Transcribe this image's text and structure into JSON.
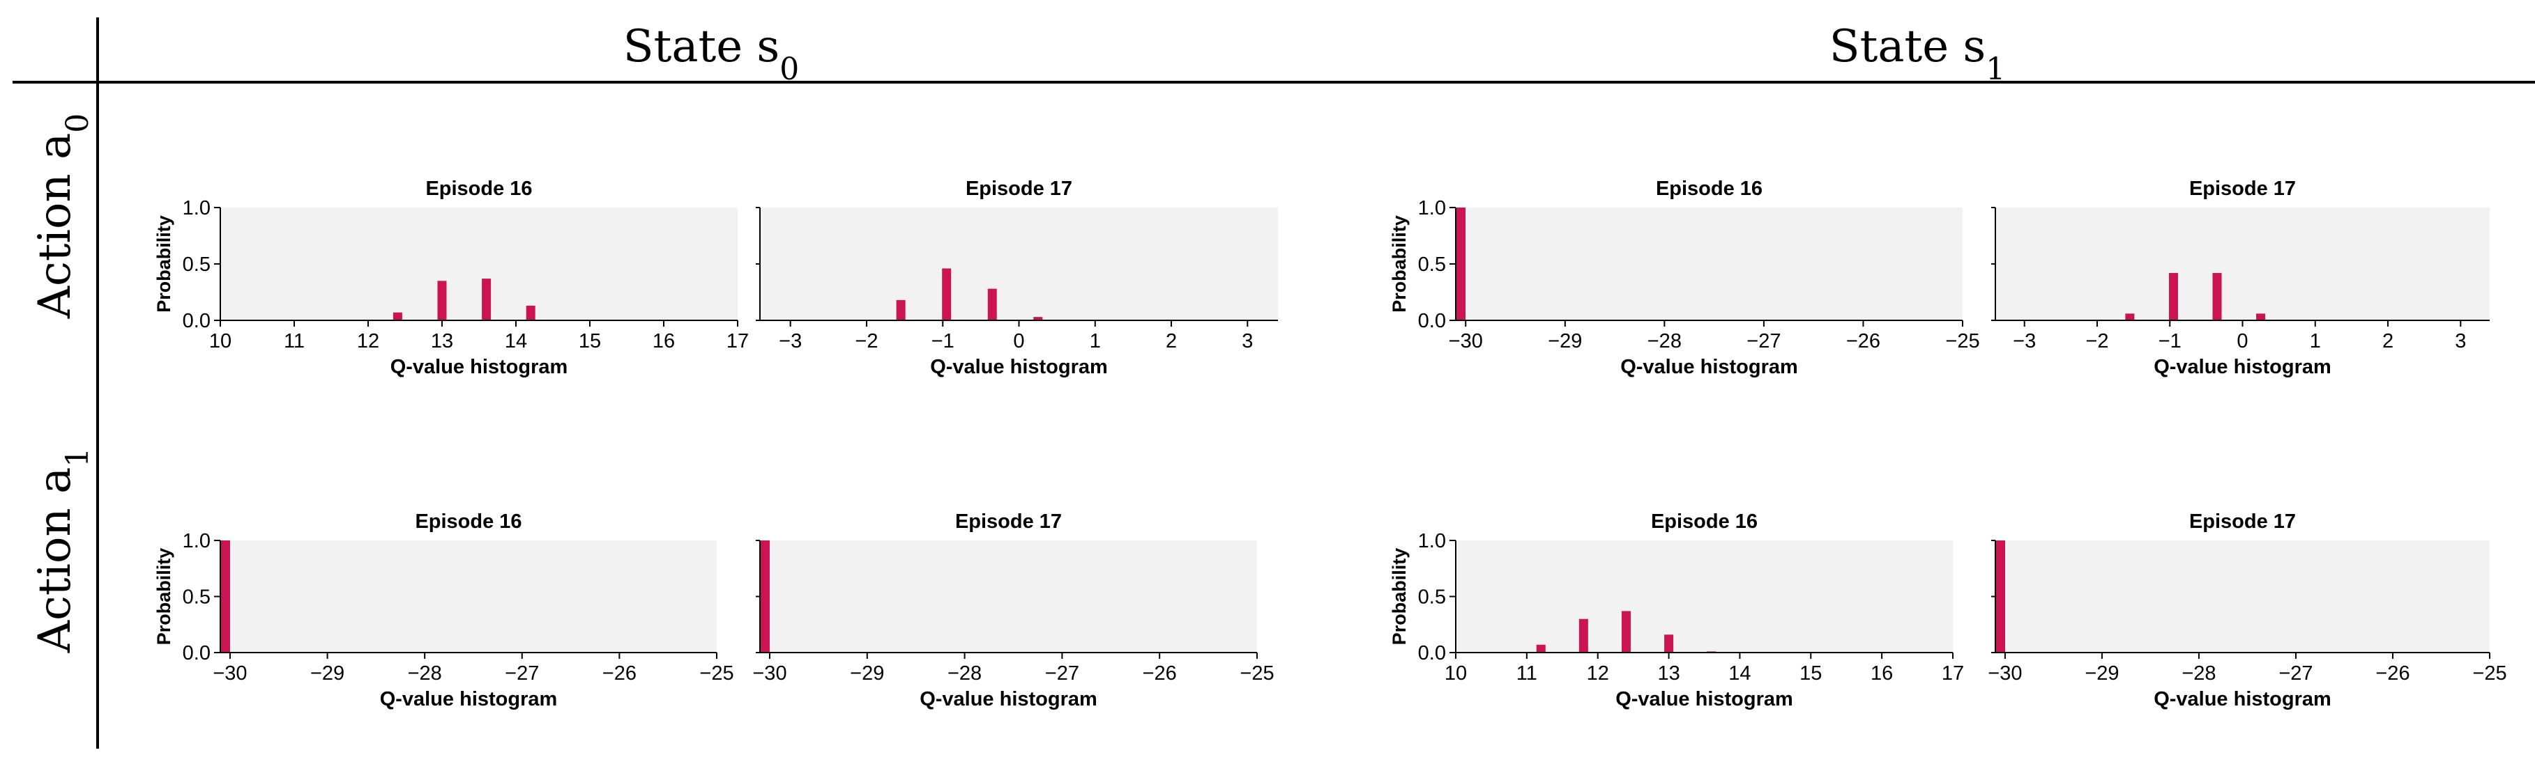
{
  "headers": {
    "state_s0": "State s",
    "state_s0_sub": "0",
    "state_s1": "State s",
    "state_s1_sub": "1",
    "action_a0": "Action a",
    "action_a0_sub": "0",
    "action_a1": "Action a",
    "action_a1_sub": "1"
  },
  "colors": {
    "bar": "#cc1452",
    "panel_bg": "#f2f2f2",
    "rule": "#000000"
  },
  "chart_data": [
    {
      "id": "a0-s0-ep16",
      "type": "bar",
      "title": "Episode 16",
      "xlabel": "Q-value histogram",
      "ylabel": "Probability",
      "xlim": [
        10,
        17
      ],
      "ylim": [
        0,
        1
      ],
      "xticks": [
        "10",
        "11",
        "12",
        "13",
        "14",
        "15",
        "16",
        "17"
      ],
      "yticks": [
        "0.0",
        "0.5",
        "1.0"
      ],
      "x": [
        12.4,
        13.0,
        13.6,
        14.2
      ],
      "values": [
        0.07,
        0.35,
        0.37,
        0.13
      ]
    },
    {
      "id": "a0-s0-ep17",
      "type": "bar",
      "title": "Episode 17",
      "xlabel": "Q-value histogram",
      "ylabel": "",
      "xlim": [
        -3.4,
        3.4
      ],
      "ylim": [
        0,
        1
      ],
      "xticks": [
        "−3",
        "−2",
        "−1",
        "0",
        "1",
        "2",
        "3"
      ],
      "yticks": [],
      "x": [
        -1.55,
        -0.95,
        -0.35,
        0.25
      ],
      "values": [
        0.18,
        0.46,
        0.28,
        0.03
      ]
    },
    {
      "id": "a0-s1-ep16",
      "type": "bar",
      "title": "Episode 16",
      "xlabel": "Q-value histogram",
      "ylabel": "Probability",
      "xlim": [
        -30.1,
        -25
      ],
      "ylim": [
        0,
        1
      ],
      "xticks": [
        "−30",
        "−29",
        "−28",
        "−27",
        "−26",
        "−25"
      ],
      "yticks": [
        "0.0",
        "0.5",
        "1.0"
      ],
      "x": [
        -30
      ],
      "values": [
        1.0
      ]
    },
    {
      "id": "a0-s1-ep17",
      "type": "bar",
      "title": "Episode 17",
      "xlabel": "Q-value histogram",
      "ylabel": "",
      "xlim": [
        -3.4,
        3.4
      ],
      "ylim": [
        0,
        1
      ],
      "xticks": [
        "−3",
        "−2",
        "−1",
        "0",
        "1",
        "2",
        "3"
      ],
      "yticks": [],
      "x": [
        -1.55,
        -0.95,
        -0.35,
        0.25
      ],
      "values": [
        0.06,
        0.42,
        0.42,
        0.06
      ]
    },
    {
      "id": "a1-s0-ep16",
      "type": "bar",
      "title": "Episode 16",
      "xlabel": "Q-value histogram",
      "ylabel": "Probability",
      "xlim": [
        -30.1,
        -25
      ],
      "ylim": [
        0,
        1
      ],
      "xticks": [
        "−30",
        "−29",
        "−28",
        "−27",
        "−26",
        "−25"
      ],
      "yticks": [
        "0.0",
        "0.5",
        "1.0"
      ],
      "x": [
        -30
      ],
      "values": [
        1.0
      ]
    },
    {
      "id": "a1-s0-ep17",
      "type": "bar",
      "title": "Episode 17",
      "xlabel": "Q-value histogram",
      "ylabel": "",
      "xlim": [
        -30.1,
        -25
      ],
      "ylim": [
        0,
        1
      ],
      "xticks": [
        "−30",
        "−29",
        "−28",
        "−27",
        "−26",
        "−25"
      ],
      "yticks": [],
      "x": [
        -30
      ],
      "values": [
        1.0
      ]
    },
    {
      "id": "a1-s1-ep16",
      "type": "bar",
      "title": "Episode 16",
      "xlabel": "Q-value histogram",
      "ylabel": "Probability",
      "xlim": [
        10,
        17
      ],
      "ylim": [
        0,
        1
      ],
      "xticks": [
        "10",
        "11",
        "12",
        "13",
        "14",
        "15",
        "16",
        "17"
      ],
      "yticks": [
        "0.0",
        "0.5",
        "1.0"
      ],
      "x": [
        11.2,
        11.8,
        12.4,
        13.0,
        13.6
      ],
      "values": [
        0.07,
        0.3,
        0.37,
        0.16,
        0.01
      ]
    },
    {
      "id": "a1-s1-ep17",
      "type": "bar",
      "title": "Episode 17",
      "xlabel": "Q-value histogram",
      "ylabel": "",
      "xlim": [
        -30.1,
        -25
      ],
      "ylim": [
        0,
        1
      ],
      "xticks": [
        "−30",
        "−29",
        "−28",
        "−27",
        "−26",
        "−25"
      ],
      "yticks": [],
      "x": [
        -30
      ],
      "values": [
        1.0
      ]
    }
  ]
}
